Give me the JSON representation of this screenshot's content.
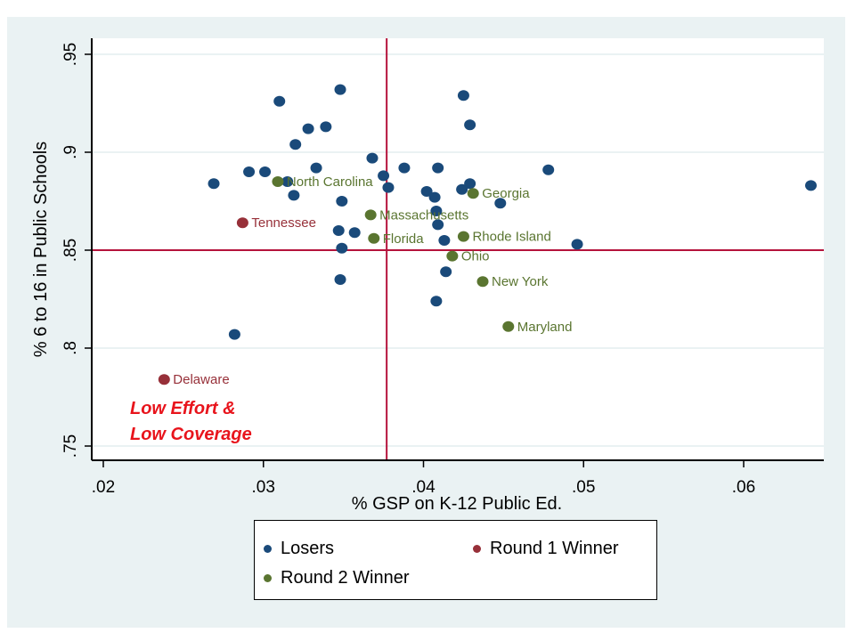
{
  "chart_data": {
    "type": "scatter",
    "title": "",
    "xlabel": "% GSP on K-12 Public Ed.",
    "ylabel": "% 6 to 16 in Public Schools",
    "xlim": [
      0.0195,
      0.065
    ],
    "ylim": [
      0.742,
      0.963
    ],
    "xticks": [
      ".02",
      ".03",
      ".04",
      ".05",
      ".06"
    ],
    "xtick_values": [
      0.02,
      0.03,
      0.04,
      0.05,
      0.06
    ],
    "yticks": [
      ".75",
      ".8",
      ".85",
      ".9",
      ".95"
    ],
    "ytick_values": [
      0.75,
      0.8,
      0.85,
      0.9,
      0.95
    ],
    "grid": "horizontal",
    "reference_lines": {
      "x": 0.0377,
      "y": 0.85,
      "color": "#b5133c"
    },
    "legend_position": "bottom",
    "colors": {
      "losers": "#1a4a7a",
      "round1": "#973039",
      "round2": "#5a7530",
      "annotation": "#e8141c"
    },
    "series": [
      {
        "name": "Losers",
        "key": "losers",
        "points": [
          {
            "x": 0.0269,
            "y": 0.884
          },
          {
            "x": 0.0291,
            "y": 0.89
          },
          {
            "x": 0.0301,
            "y": 0.89
          },
          {
            "x": 0.031,
            "y": 0.926
          },
          {
            "x": 0.0315,
            "y": 0.885
          },
          {
            "x": 0.0319,
            "y": 0.878
          },
          {
            "x": 0.032,
            "y": 0.904
          },
          {
            "x": 0.0328,
            "y": 0.912
          },
          {
            "x": 0.0333,
            "y": 0.892
          },
          {
            "x": 0.0339,
            "y": 0.913
          },
          {
            "x": 0.0348,
            "y": 0.932
          },
          {
            "x": 0.0349,
            "y": 0.875
          },
          {
            "x": 0.0347,
            "y": 0.86
          },
          {
            "x": 0.0349,
            "y": 0.851
          },
          {
            "x": 0.0348,
            "y": 0.835
          },
          {
            "x": 0.0357,
            "y": 0.859
          },
          {
            "x": 0.0368,
            "y": 0.897
          },
          {
            "x": 0.0375,
            "y": 0.888
          },
          {
            "x": 0.0378,
            "y": 0.882
          },
          {
            "x": 0.0388,
            "y": 0.892
          },
          {
            "x": 0.0402,
            "y": 0.88
          },
          {
            "x": 0.0407,
            "y": 0.877
          },
          {
            "x": 0.0409,
            "y": 0.892
          },
          {
            "x": 0.0408,
            "y": 0.87
          },
          {
            "x": 0.0409,
            "y": 0.863
          },
          {
            "x": 0.0413,
            "y": 0.855
          },
          {
            "x": 0.0414,
            "y": 0.839
          },
          {
            "x": 0.0408,
            "y": 0.824
          },
          {
            "x": 0.0424,
            "y": 0.881
          },
          {
            "x": 0.0429,
            "y": 0.884
          },
          {
            "x": 0.0425,
            "y": 0.929
          },
          {
            "x": 0.0429,
            "y": 0.914
          },
          {
            "x": 0.0448,
            "y": 0.874
          },
          {
            "x": 0.0478,
            "y": 0.891
          },
          {
            "x": 0.0496,
            "y": 0.853
          },
          {
            "x": 0.0642,
            "y": 0.883
          },
          {
            "x": 0.0282,
            "y": 0.807
          }
        ]
      },
      {
        "name": "Round 1 Winner",
        "key": "round1",
        "points": [
          {
            "x": 0.0287,
            "y": 0.864,
            "label": "Tennessee"
          },
          {
            "x": 0.0238,
            "y": 0.784,
            "label": "Delaware"
          }
        ]
      },
      {
        "name": "Round 2 Winner",
        "key": "round2",
        "points": [
          {
            "x": 0.0309,
            "y": 0.885,
            "label": "North Carolina"
          },
          {
            "x": 0.0367,
            "y": 0.868,
            "label": "Massachusetts"
          },
          {
            "x": 0.0369,
            "y": 0.856,
            "label": "Florida"
          },
          {
            "x": 0.0431,
            "y": 0.879,
            "label": "Georgia"
          },
          {
            "x": 0.0425,
            "y": 0.857,
            "label": "Rhode Island"
          },
          {
            "x": 0.0418,
            "y": 0.847,
            "label": "Ohio"
          },
          {
            "x": 0.0437,
            "y": 0.834,
            "label": "New York"
          },
          {
            "x": 0.0453,
            "y": 0.811,
            "label": "Maryland"
          }
        ]
      }
    ],
    "annotation": [
      "Low Effort &",
      "Low Coverage"
    ]
  },
  "legend": {
    "items": [
      {
        "label": "Losers",
        "key": "losers"
      },
      {
        "label": "Round 1 Winner",
        "key": "round1"
      },
      {
        "label": "Round 2 Winner",
        "key": "round2"
      }
    ]
  }
}
